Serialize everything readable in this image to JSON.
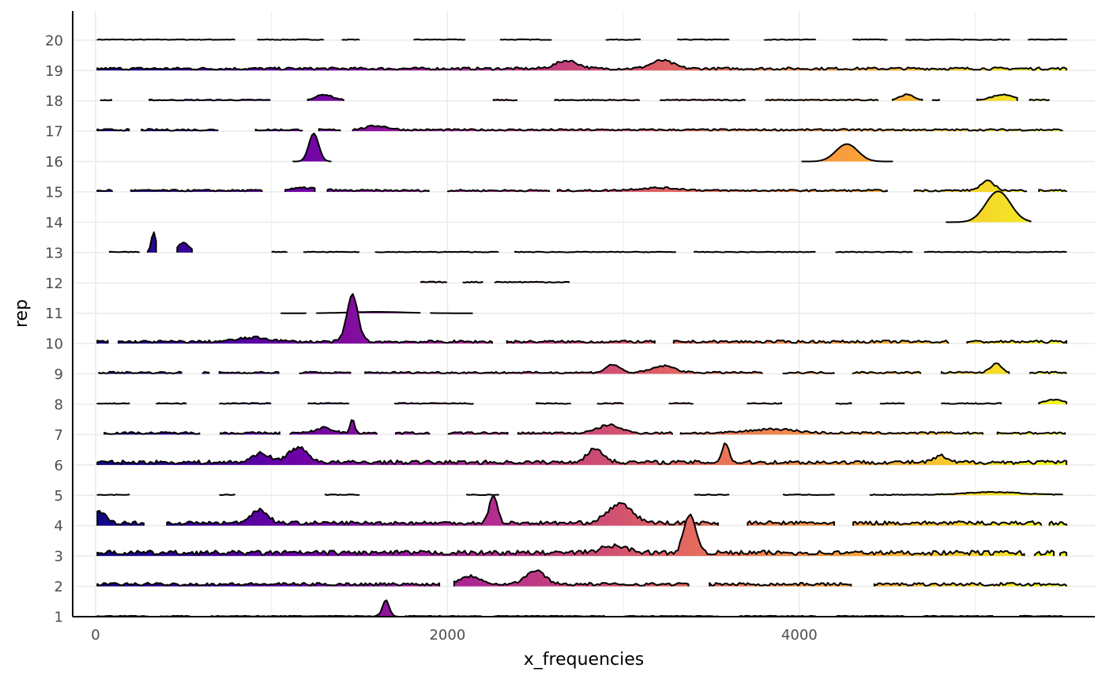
{
  "chart_data": {
    "type": "ridgeline",
    "xlabel": "x_frequencies",
    "ylabel": "rep",
    "xlim": [
      -130,
      5680
    ],
    "x_ticks": [
      0,
      2000,
      4000
    ],
    "x_tick_labels": [
      "0",
      "2000",
      "4000"
    ],
    "y_categories": [
      "1",
      "2",
      "3",
      "4",
      "5",
      "6",
      "7",
      "8",
      "9",
      "10",
      "11",
      "12",
      "13",
      "14",
      "15",
      "16",
      "17",
      "18",
      "19",
      "20"
    ],
    "grid": true,
    "fill_scale": "plasma",
    "fill_colors": [
      "#0d0887",
      "#6a00a8",
      "#b12a90",
      "#e16462",
      "#fca636",
      "#f0f921"
    ],
    "outline_color": "#000000",
    "ridge_height": 1.0,
    "series": [
      {
        "name": "1",
        "x_range": [
          10,
          5500
        ],
        "baseline": 0.02,
        "peaks": [
          [
            1650,
            0.6,
            12
          ]
        ],
        "gaps": [
          [
            300,
            360
          ],
          [
            550,
            650
          ],
          [
            1720,
            1760
          ],
          [
            2200,
            2260
          ],
          [
            2900,
            3000
          ],
          [
            3550,
            3650
          ],
          [
            4100,
            4200
          ],
          [
            4600,
            4700
          ],
          [
            5100,
            5250
          ]
        ]
      },
      {
        "name": "2",
        "x_range": [
          10,
          5520
        ],
        "baseline": 0.08,
        "peaks": [
          [
            2130,
            0.3,
            40
          ],
          [
            2500,
            0.5,
            35
          ]
        ],
        "gaps": [
          [
            1960,
            2030
          ],
          [
            3380,
            3480
          ],
          [
            4300,
            4420
          ]
        ]
      },
      {
        "name": "3",
        "x_range": [
          10,
          5520
        ],
        "baseline": 0.12,
        "peaks": [
          [
            3380,
            1.4,
            22
          ],
          [
            2950,
            0.25,
            50
          ]
        ],
        "gaps": [
          [
            5280,
            5330
          ],
          [
            5450,
            5480
          ]
        ]
      },
      {
        "name": "4",
        "x_range": [
          10,
          5520
        ],
        "baseline": 0.1,
        "peaks": [
          [
            20,
            0.4,
            25
          ],
          [
            930,
            0.5,
            30
          ],
          [
            2260,
            1.0,
            15
          ],
          [
            2980,
            0.7,
            45
          ]
        ],
        "gaps": [
          [
            280,
            400
          ],
          [
            3550,
            3700
          ],
          [
            4200,
            4300
          ],
          [
            5380,
            5420
          ]
        ]
      },
      {
        "name": "5",
        "x_range": [
          10,
          5500
        ],
        "baseline": 0.02,
        "peaks": [
          [
            5100,
            0.1,
            100
          ]
        ],
        "gaps": [
          [
            200,
            700
          ],
          [
            800,
            1300
          ],
          [
            1500,
            2100
          ],
          [
            2300,
            3400
          ],
          [
            3600,
            3900
          ],
          [
            4200,
            4400
          ]
        ]
      },
      {
        "name": "6",
        "x_range": [
          10,
          5520
        ],
        "baseline": 0.1,
        "peaks": [
          [
            940,
            0.35,
            30
          ],
          [
            1150,
            0.55,
            35
          ],
          [
            2840,
            0.5,
            30
          ],
          [
            3580,
            0.75,
            12
          ],
          [
            4800,
            0.25,
            20
          ]
        ],
        "gaps": []
      },
      {
        "name": "7",
        "x_range": [
          50,
          5520
        ],
        "baseline": 0.06,
        "peaks": [
          [
            1300,
            0.2,
            30
          ],
          [
            1460,
            0.55,
            8
          ],
          [
            2920,
            0.3,
            40
          ],
          [
            3850,
            0.15,
            80
          ]
        ],
        "gaps": [
          [
            600,
            700
          ],
          [
            1050,
            1100
          ],
          [
            1600,
            1700
          ],
          [
            1900,
            2000
          ],
          [
            2350,
            2400
          ],
          [
            3280,
            3320
          ],
          [
            5050,
            5120
          ]
        ]
      },
      {
        "name": "8",
        "x_range": [
          10,
          5520
        ],
        "baseline": 0.03,
        "peaks": [
          [
            5450,
            0.15,
            30
          ]
        ],
        "gaps": [
          [
            200,
            340
          ],
          [
            520,
            700
          ],
          [
            1000,
            1200
          ],
          [
            1450,
            1700
          ],
          [
            2150,
            2500
          ],
          [
            2700,
            2850
          ],
          [
            3000,
            3250
          ],
          [
            3400,
            3700
          ],
          [
            3900,
            4200
          ],
          [
            4300,
            4450
          ],
          [
            4600,
            4800
          ],
          [
            5150,
            5350
          ]
        ]
      },
      {
        "name": "9",
        "x_range": [
          20,
          5520
        ],
        "baseline": 0.05,
        "peaks": [
          [
            2940,
            0.3,
            25
          ],
          [
            3230,
            0.25,
            40
          ],
          [
            5120,
            0.35,
            20
          ]
        ],
        "gaps": [
          [
            500,
            600
          ],
          [
            650,
            700
          ],
          [
            1050,
            1150
          ],
          [
            1450,
            1520
          ],
          [
            3800,
            3900
          ],
          [
            4200,
            4300
          ],
          [
            4700,
            4800
          ],
          [
            5200,
            5300
          ]
        ]
      },
      {
        "name": "10",
        "x_range": [
          10,
          5520
        ],
        "baseline": 0.07,
        "peaks": [
          [
            1460,
            1.75,
            20
          ],
          [
            900,
            0.15,
            60
          ]
        ],
        "gaps": [
          [
            80,
            120
          ],
          [
            2260,
            2330
          ],
          [
            3180,
            3230
          ],
          [
            3230,
            3280
          ],
          [
            4850,
            4950
          ]
        ]
      },
      {
        "name": "11",
        "x_range": [
          20,
          5500
        ],
        "baseline": 0.0,
        "peaks": [
          [
            1600,
            0.05,
            100
          ]
        ],
        "gaps": [
          [
            100,
            150
          ],
          [
            250,
            300
          ],
          [
            400,
            450
          ],
          [
            900,
            960
          ],
          [
            1200,
            1250
          ],
          [
            1850,
            1900
          ],
          [
            2200,
            2260
          ],
          [
            2600,
            2700
          ],
          [
            3200,
            3260
          ],
          [
            3500,
            3600
          ],
          [
            4000,
            4100
          ],
          [
            4500,
            4600
          ],
          [
            5000,
            5100
          ]
        ]
      },
      {
        "name": "12",
        "x_range": [
          1850,
          2700
        ],
        "baseline": 0.03,
        "peaks": [],
        "gaps": [
          [
            2000,
            2080
          ],
          [
            2200,
            2260
          ]
        ]
      },
      {
        "name": "13",
        "x_range": [
          80,
          5520
        ],
        "baseline": 0.02,
        "peaks": [
          [
            330,
            0.75,
            8
          ],
          [
            500,
            0.35,
            20
          ]
        ],
        "gaps": [
          [
            260,
            290
          ],
          [
            350,
            460
          ],
          [
            560,
            1000
          ],
          [
            1100,
            1180
          ],
          [
            1500,
            1580
          ],
          [
            2300,
            2380
          ],
          [
            3300,
            3400
          ],
          [
            4100,
            4200
          ],
          [
            4650,
            4700
          ]
        ]
      },
      {
        "name": "14",
        "x_range": [
          10,
          5320
        ],
        "baseline": 0.0,
        "peaks": [
          [
            5130,
            1.15,
            45
          ]
        ],
        "gaps": [
          [
            100,
            200
          ],
          [
            300,
            400
          ],
          [
            700,
            800
          ],
          [
            1200,
            1300
          ],
          [
            1800,
            1900
          ],
          [
            2400,
            2500
          ],
          [
            3000,
            3100
          ],
          [
            3600,
            3700
          ],
          [
            4200,
            4300
          ],
          [
            4700,
            4800
          ]
        ]
      },
      {
        "name": "15",
        "x_range": [
          10,
          5520
        ],
        "baseline": 0.05,
        "peaks": [
          [
            5070,
            0.35,
            25
          ],
          [
            1200,
            0.1,
            50
          ],
          [
            3200,
            0.1,
            80
          ]
        ],
        "gaps": [
          [
            100,
            200
          ],
          [
            950,
            1070
          ],
          [
            1250,
            1310
          ],
          [
            1900,
            2000
          ],
          [
            2580,
            2620
          ],
          [
            4500,
            4650
          ],
          [
            5300,
            5350
          ]
        ]
      },
      {
        "name": "16",
        "x_range": [
          30,
          5500
        ],
        "baseline": 0.0,
        "peaks": [
          [
            1240,
            1.05,
            18
          ],
          [
            4270,
            0.65,
            40
          ]
        ],
        "gaps": [
          [
            200,
            260
          ],
          [
            500,
            560
          ],
          [
            1350,
            1400
          ],
          [
            1600,
            1700
          ],
          [
            1850,
            2000
          ],
          [
            2400,
            2450
          ],
          [
            2850,
            2950
          ],
          [
            3600,
            3700
          ],
          [
            5000,
            5100
          ]
        ]
      },
      {
        "name": "17",
        "x_range": [
          10,
          5500
        ],
        "baseline": 0.05,
        "peaks": [
          [
            1600,
            0.15,
            40
          ]
        ],
        "gaps": [
          [
            200,
            260
          ],
          [
            700,
            900
          ],
          [
            1180,
            1260
          ],
          [
            1400,
            1460
          ]
        ]
      },
      {
        "name": "18",
        "x_range": [
          30,
          5420
        ],
        "baseline": 0.03,
        "peaks": [
          [
            1300,
            0.2,
            30
          ],
          [
            4610,
            0.2,
            25
          ],
          [
            5160,
            0.2,
            40
          ]
        ],
        "gaps": [
          [
            100,
            300
          ],
          [
            1000,
            1200
          ],
          [
            1420,
            2250
          ],
          [
            2400,
            2600
          ],
          [
            3100,
            3200
          ],
          [
            3700,
            3800
          ],
          [
            4450,
            4520
          ],
          [
            4700,
            4750
          ],
          [
            4800,
            5000
          ],
          [
            5250,
            5300
          ]
        ]
      },
      {
        "name": "19",
        "x_range": [
          10,
          5520
        ],
        "baseline": 0.07,
        "peaks": [
          [
            2680,
            0.3,
            40
          ],
          [
            3220,
            0.3,
            40
          ]
        ],
        "gaps": []
      },
      {
        "name": "20",
        "x_range": [
          10,
          5520
        ],
        "baseline": 0.02,
        "peaks": [],
        "gaps": [
          [
            800,
            920
          ],
          [
            1300,
            1400
          ],
          [
            1500,
            1800
          ],
          [
            2100,
            2300
          ],
          [
            2600,
            2900
          ],
          [
            3100,
            3300
          ],
          [
            3600,
            3800
          ],
          [
            4100,
            4300
          ],
          [
            4500,
            4600
          ],
          [
            5200,
            5300
          ]
        ]
      }
    ]
  }
}
